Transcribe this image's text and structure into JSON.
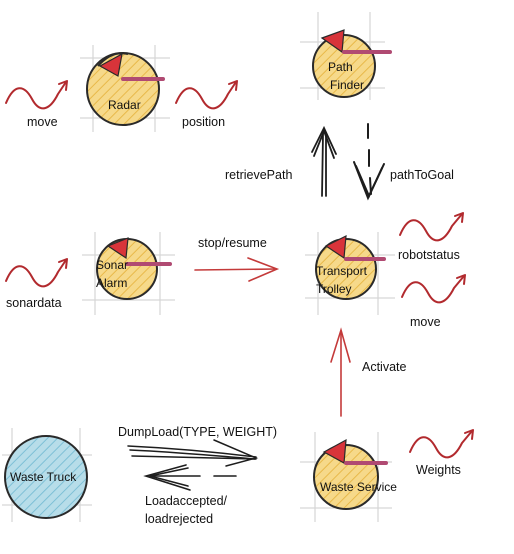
{
  "colors": {
    "actor_fill": "#f6d98a",
    "actor_hatch": "#e8b94a",
    "actor_stroke": "#2a2a2a",
    "head": "#d8343a",
    "bar": "#b04a72",
    "grid": "#d6d6d6",
    "wave": "#b22a2e",
    "arrow_red": "#c43a3a",
    "arrow_dark": "#1d1d1d",
    "waste_fill": "#b7dde9",
    "waste_hatch": "#7ec0d6"
  },
  "nodes": {
    "radar": {
      "label": "Radar",
      "icon": "actor-icon"
    },
    "path_finder": {
      "label_line1": "Path",
      "label_line2": "Finder",
      "icon": "actor-icon"
    },
    "sonar_alarm": {
      "label_line1": "Sonar",
      "label_line2": "Alarm",
      "icon": "actor-icon"
    },
    "transport_trolley": {
      "label_line1": "Transport",
      "label_line2": "Trolley",
      "icon": "actor-icon"
    },
    "waste_service": {
      "label": "Waste Service",
      "icon": "actor-icon"
    },
    "waste_truck": {
      "label": "Waste Truck",
      "icon": "external-actor-icon"
    }
  },
  "events": {
    "move_top": "move",
    "position": "position",
    "sonardata": "sonardata",
    "robotstatus": "robotstatus",
    "move_right": "move",
    "weights": "Weights"
  },
  "messages": {
    "retrieve_path": "retrievePath",
    "path_to_goal": "pathToGoal",
    "stop_resume": "stop/resume",
    "activate": "Activate",
    "dump_load": "DumpLoad(TYPE, WEIGHT)",
    "load_reply_line1": "Loadaccepted/",
    "load_reply_line2": "loadrejected"
  }
}
